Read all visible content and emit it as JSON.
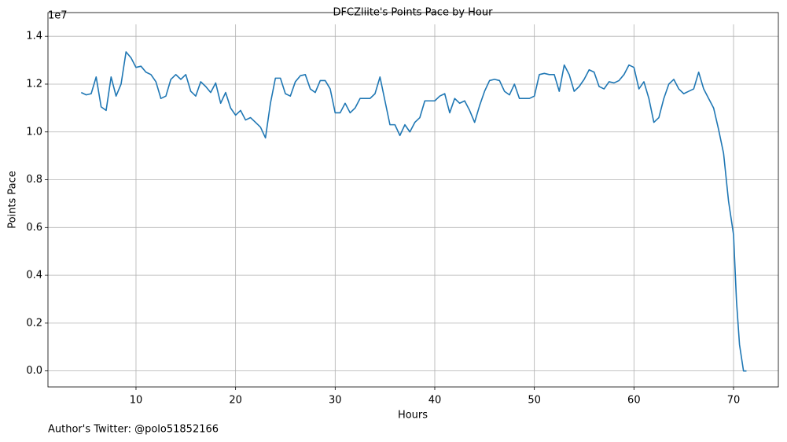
{
  "chart_data": {
    "type": "line",
    "title": "DFCZliite's Points Pace by Hour",
    "xlabel": "Hours",
    "ylabel": "Points Pace",
    "y_offset_label": "1e7",
    "footnote": "Author's Twitter: @polo51852166",
    "color": "#1f77b4",
    "grid": true,
    "xlim": [
      1.16,
      74.5
    ],
    "ylim": [
      -0.067,
      1.45
    ],
    "xticks": [
      10,
      20,
      30,
      40,
      50,
      60,
      70
    ],
    "yticks": [
      {
        "value": 0,
        "label": "0.0"
      },
      0.2,
      0.4,
      0.6,
      0.8,
      {
        "value": 1,
        "label": "1.0"
      },
      1.2,
      1.4
    ],
    "x": [
      4.5,
      5,
      5.5,
      6,
      6.5,
      7,
      7.5,
      8,
      8.5,
      9,
      9.5,
      10,
      10.5,
      11,
      11.5,
      12,
      12.5,
      13,
      13.5,
      14,
      14.5,
      15,
      15.5,
      16,
      16.5,
      17,
      17.5,
      18,
      18.5,
      19,
      19.5,
      20,
      20.5,
      21,
      21.5,
      22,
      22.5,
      23,
      23.5,
      24,
      24.5,
      25,
      25.5,
      26,
      26.5,
      27,
      27.5,
      28,
      28.5,
      29,
      29.5,
      30,
      30.5,
      31,
      31.5,
      32,
      32.5,
      33,
      33.5,
      34,
      34.5,
      35,
      35.5,
      36,
      36.5,
      37,
      37.5,
      38,
      38.5,
      39,
      39.5,
      40,
      40.5,
      41,
      41.5,
      42,
      42.5,
      43,
      43.5,
      44,
      44.5,
      45,
      45.5,
      46,
      46.5,
      47,
      47.5,
      48,
      48.5,
      49,
      49.5,
      50,
      50.5,
      51,
      51.5,
      52,
      52.5,
      53,
      53.5,
      54,
      54.5,
      55,
      55.5,
      56,
      56.5,
      57,
      57.5,
      58,
      58.5,
      59,
      59.5,
      60,
      60.5,
      61,
      61.5,
      62,
      62.5,
      63,
      63.5,
      64,
      64.5,
      65,
      65.5,
      66,
      66.5,
      67,
      67.5,
      68,
      68.5,
      69,
      69.5,
      70,
      70.3,
      70.6,
      71,
      71.3
    ],
    "values": [
      1.165,
      1.155,
      1.16,
      1.23,
      1.105,
      1.09,
      1.23,
      1.15,
      1.2,
      1.335,
      1.31,
      1.27,
      1.275,
      1.25,
      1.24,
      1.21,
      1.14,
      1.15,
      1.22,
      1.24,
      1.22,
      1.24,
      1.17,
      1.15,
      1.21,
      1.19,
      1.165,
      1.205,
      1.12,
      1.165,
      1.1,
      1.07,
      1.09,
      1.05,
      1.06,
      1.04,
      1.02,
      0.975,
      1.12,
      1.225,
      1.225,
      1.16,
      1.15,
      1.21,
      1.235,
      1.24,
      1.18,
      1.165,
      1.215,
      1.215,
      1.18,
      1.08,
      1.08,
      1.12,
      1.08,
      1.1,
      1.14,
      1.14,
      1.14,
      1.16,
      1.23,
      1.13,
      1.03,
      1.03,
      0.985,
      1.03,
      1,
      1.04,
      1.06,
      1.13,
      1.13,
      1.13,
      1.15,
      1.16,
      1.08,
      1.14,
      1.12,
      1.13,
      1.09,
      1.04,
      1.11,
      1.17,
      1.215,
      1.22,
      1.215,
      1.17,
      1.155,
      1.2,
      1.14,
      1.14,
      1.14,
      1.15,
      1.24,
      1.245,
      1.24,
      1.24,
      1.17,
      1.28,
      1.24,
      1.17,
      1.19,
      1.22,
      1.26,
      1.25,
      1.19,
      1.18,
      1.21,
      1.205,
      1.215,
      1.24,
      1.28,
      1.27,
      1.18,
      1.21,
      1.14,
      1.04,
      1.06,
      1.14,
      1.2,
      1.22,
      1.18,
      1.16,
      1.17,
      1.18,
      1.25,
      1.18,
      1.14,
      1.1,
      1.01,
      0.91,
      0.71,
      0.57,
      0.29,
      0.11,
      0,
      0
    ]
  }
}
